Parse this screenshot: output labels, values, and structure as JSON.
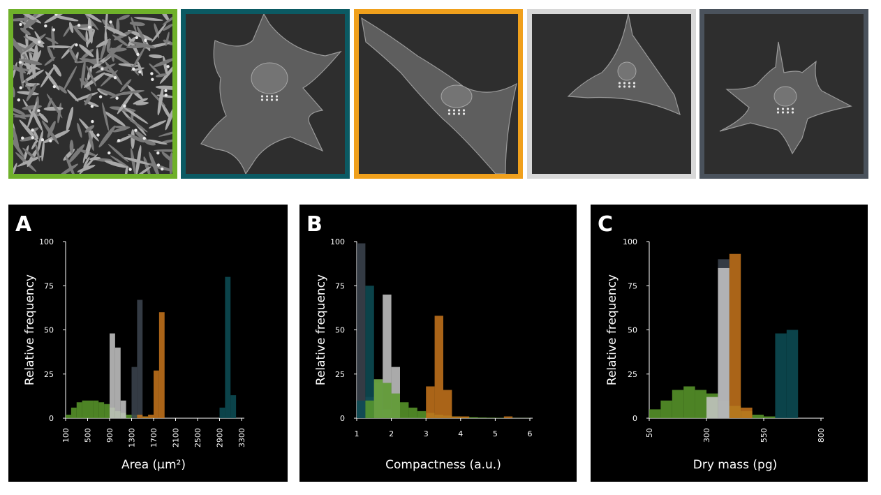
{
  "images": [
    {
      "name": "cell-population-image",
      "border_color": "#6fb12a",
      "kind": "population"
    },
    {
      "name": "cell-image-teal",
      "border_color": "#0b5a63",
      "kind": "cell-large"
    },
    {
      "name": "cell-image-orange",
      "border_color": "#f0a01c",
      "kind": "cell-elongated"
    },
    {
      "name": "cell-image-light",
      "border_color": "#d8d8d8",
      "kind": "cell-triangle"
    },
    {
      "name": "cell-image-slate",
      "border_color": "#4a525c",
      "kind": "cell-spiky"
    }
  ],
  "colors": {
    "green": "#5a9a2c",
    "teal": "#0d4f57",
    "orange": "#c8761c",
    "light": "#c8c8c8",
    "slate": "#3d4550",
    "background": "#000000"
  },
  "chart_data": [
    {
      "type": "bar",
      "panel_label": "A",
      "xlabel": "Area (µm²)",
      "ylabel": "Relative frequency",
      "xlim": [
        100,
        3300
      ],
      "ylim": [
        0,
        100
      ],
      "xticks": [
        "100",
        "500",
        "900",
        "1300",
        "1700",
        "2100",
        "2500",
        "2900",
        "3300"
      ],
      "yticks": [
        "0",
        "25",
        "50",
        "75",
        "100"
      ],
      "bin_width": 100,
      "series": [
        {
          "color": "green",
          "x": [
            150,
            250,
            350,
            450,
            550,
            650,
            750,
            850,
            950,
            1050,
            1150,
            1250,
            1350,
            1450,
            1550,
            1650
          ],
          "values": [
            2,
            6,
            9,
            10,
            10,
            10,
            9,
            8,
            6,
            4,
            3,
            2,
            2,
            1.5,
            1,
            0.5
          ]
        },
        {
          "color": "light",
          "x": [
            950,
            1050,
            1150
          ],
          "values": [
            48,
            40,
            10
          ]
        },
        {
          "color": "slate",
          "x": [
            1350,
            1450
          ],
          "values": [
            29,
            67
          ]
        },
        {
          "color": "orange",
          "x": [
            1450,
            1550,
            1650,
            1750,
            1850
          ],
          "values": [
            2,
            1,
            2,
            27,
            60
          ]
        },
        {
          "color": "teal",
          "x": [
            2950,
            3050,
            3150
          ],
          "values": [
            6,
            80,
            13
          ]
        }
      ]
    },
    {
      "type": "bar",
      "panel_label": "B",
      "xlabel": "Compactness (a.u.)",
      "ylabel": "Relative frequency",
      "xlim": [
        1,
        6
      ],
      "ylim": [
        0,
        100
      ],
      "xticks": [
        "1",
        "2",
        "3",
        "4",
        "5",
        "6"
      ],
      "yticks": [
        "0",
        "25",
        "50",
        "75",
        "100"
      ],
      "bin_width": 0.25,
      "series": [
        {
          "color": "slate",
          "x": [
            1.125,
            1.375
          ],
          "values": [
            99,
            12
          ]
        },
        {
          "color": "teal",
          "x": [
            1.125,
            1.375,
            1.625,
            1.875,
            2.125
          ],
          "values": [
            10,
            75,
            20,
            5,
            1
          ]
        },
        {
          "color": "light",
          "x": [
            1.625,
            1.875,
            2.125
          ],
          "values": [
            22,
            70,
            29
          ]
        },
        {
          "color": "green",
          "x": [
            1.375,
            1.625,
            1.875,
            2.125,
            2.375,
            2.625,
            2.875,
            3.125,
            3.375,
            3.625,
            3.875,
            4.125,
            4.375,
            4.625,
            4.875,
            5.125,
            5.375,
            5.625,
            5.875
          ],
          "values": [
            10,
            22,
            20,
            14,
            9,
            6,
            4,
            3,
            2,
            1.5,
            1,
            0.8,
            0.6,
            0.4,
            0.3,
            0.2,
            0.2,
            0.1,
            0.1
          ]
        },
        {
          "color": "orange",
          "x": [
            3.125,
            3.375,
            3.625,
            3.875,
            4.125,
            5.375
          ],
          "values": [
            18,
            58,
            16,
            1,
            1,
            1
          ]
        }
      ]
    },
    {
      "type": "bar",
      "panel_label": "C",
      "xlabel": "Dry mass (pg)",
      "ylabel": "Relative frequency",
      "xlim": [
        50,
        800
      ],
      "ylim": [
        0,
        100
      ],
      "xticks": [
        "50",
        "300",
        "550",
        "800"
      ],
      "yticks": [
        "0",
        "25",
        "50",
        "75",
        "100"
      ],
      "bin_width": 50,
      "series": [
        {
          "color": "green",
          "x": [
            75,
            125,
            175,
            225,
            275,
            325,
            375,
            425,
            475,
            525,
            575
          ],
          "values": [
            5,
            10,
            16,
            18,
            16,
            14,
            10,
            7,
            4,
            2,
            1
          ]
        },
        {
          "color": "slate",
          "x": [
            375
          ],
          "values": [
            90
          ]
        },
        {
          "color": "light",
          "x": [
            325,
            375
          ],
          "values": [
            12,
            85
          ]
        },
        {
          "color": "orange",
          "x": [
            425,
            475
          ],
          "values": [
            93,
            6
          ]
        },
        {
          "color": "teal",
          "x": [
            625,
            675
          ],
          "values": [
            48,
            50
          ]
        }
      ]
    }
  ]
}
